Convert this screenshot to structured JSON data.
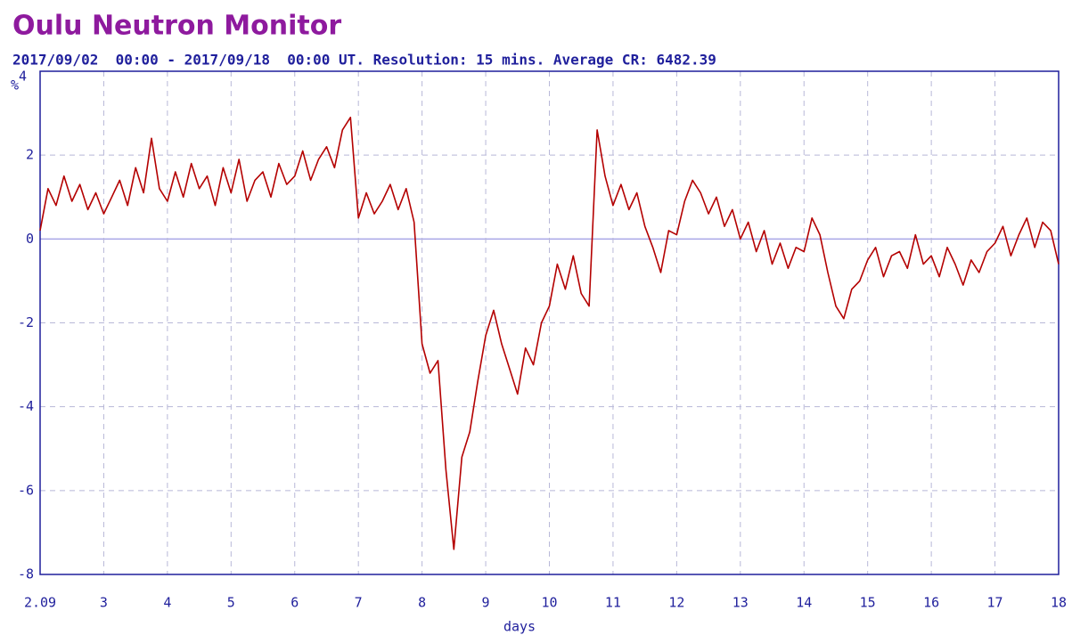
{
  "chart_data": {
    "type": "line",
    "title": "Oulu Neutron Monitor",
    "subtitle": "2017/09/02  00:00 - 2017/09/18  00:00 UT. Resolution: 15 mins. Average CR: 6482.39",
    "xlabel": "days",
    "ylabel": "%",
    "color": "#b40000",
    "grid": true,
    "xlim": [
      2,
      18
    ],
    "xticks": [
      {
        "value": 2,
        "label": "2.09"
      },
      3,
      4,
      5,
      6,
      7,
      8,
      9,
      10,
      11,
      12,
      13,
      14,
      15,
      16,
      17,
      18
    ],
    "ylim": [
      -8,
      4
    ],
    "yticks": [
      -8,
      -6,
      -4,
      -2,
      0,
      2,
      4
    ],
    "x": [
      2,
      2.125,
      2.25,
      2.375,
      2.5,
      2.625,
      2.75,
      2.875,
      3,
      3.125,
      3.25,
      3.375,
      3.5,
      3.625,
      3.75,
      3.875,
      4,
      4.125,
      4.25,
      4.375,
      4.5,
      4.625,
      4.75,
      4.875,
      5,
      5.125,
      5.25,
      5.375,
      5.5,
      5.625,
      5.75,
      5.875,
      6,
      6.125,
      6.25,
      6.375,
      6.5,
      6.625,
      6.75,
      6.875,
      7,
      7.125,
      7.25,
      7.375,
      7.5,
      7.625,
      7.75,
      7.875,
      8,
      8.125,
      8.25,
      8.375,
      8.5,
      8.625,
      8.75,
      8.875,
      9,
      9.125,
      9.25,
      9.375,
      9.5,
      9.625,
      9.75,
      9.875,
      10,
      10.125,
      10.25,
      10.375,
      10.5,
      10.625,
      10.75,
      10.875,
      11,
      11.125,
      11.25,
      11.375,
      11.5,
      11.625,
      11.75,
      11.875,
      12,
      12.125,
      12.25,
      12.375,
      12.5,
      12.625,
      12.75,
      12.875,
      13,
      13.125,
      13.25,
      13.375,
      13.5,
      13.625,
      13.75,
      13.875,
      14,
      14.125,
      14.25,
      14.375,
      14.5,
      14.625,
      14.75,
      14.875,
      15,
      15.125,
      15.25,
      15.375,
      15.5,
      15.625,
      15.75,
      15.875,
      16,
      16.125,
      16.25,
      16.375,
      16.5,
      16.625,
      16.75,
      16.875,
      17,
      17.125,
      17.25,
      17.375,
      17.5,
      17.625,
      17.75,
      17.875,
      18
    ],
    "values": [
      0.2,
      1.2,
      0.8,
      1.5,
      0.9,
      1.3,
      0.7,
      1.1,
      0.6,
      1.0,
      1.4,
      0.8,
      1.7,
      1.1,
      2.4,
      1.2,
      0.9,
      1.6,
      1.0,
      1.8,
      1.2,
      1.5,
      0.8,
      1.7,
      1.1,
      1.9,
      0.9,
      1.4,
      1.6,
      1.0,
      1.8,
      1.3,
      1.5,
      2.1,
      1.4,
      1.9,
      2.2,
      1.7,
      2.6,
      2.9,
      0.5,
      1.1,
      0.6,
      0.9,
      1.3,
      0.7,
      1.2,
      0.4,
      -2.5,
      -3.2,
      -2.9,
      -5.5,
      -7.4,
      -5.2,
      -4.6,
      -3.4,
      -2.3,
      -1.7,
      -2.5,
      -3.1,
      -3.7,
      -2.6,
      -3.0,
      -2.0,
      -1.6,
      -0.6,
      -1.2,
      -0.4,
      -1.3,
      -1.6,
      2.6,
      1.5,
      0.8,
      1.3,
      0.7,
      1.1,
      0.3,
      -0.2,
      -0.8,
      0.2,
      0.1,
      0.9,
      1.4,
      1.1,
      0.6,
      1.0,
      0.3,
      0.7,
      0.0,
      0.4,
      -0.3,
      0.2,
      -0.6,
      -0.1,
      -0.7,
      -0.2,
      -0.3,
      0.5,
      0.1,
      -0.8,
      -1.6,
      -1.9,
      -1.2,
      -1.0,
      -0.5,
      -0.2,
      -0.9,
      -0.4,
      -0.3,
      -0.7,
      0.1,
      -0.6,
      -0.4,
      -0.9,
      -0.2,
      -0.6,
      -1.1,
      -0.5,
      -0.8,
      -0.3,
      -0.1,
      0.3,
      -0.4,
      0.1,
      0.5,
      -0.2,
      0.4,
      0.2,
      -0.6
    ]
  }
}
